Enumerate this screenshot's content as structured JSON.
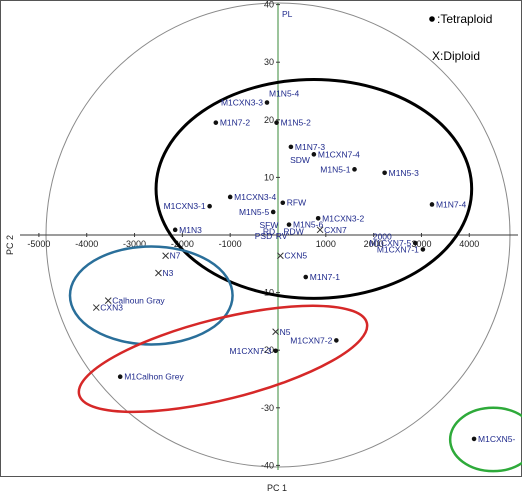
{
  "chart_data": {
    "type": "scatter",
    "xlabel": "PC 1",
    "ylabel": "PC 2",
    "xlim": [
      -5000,
      5000
    ],
    "ylim": [
      -40,
      40
    ],
    "x_ticks": [
      -5000,
      -4000,
      -3000,
      -2000,
      -1000,
      0,
      1000,
      2000,
      3000,
      4000
    ],
    "y_ticks": [
      -40,
      -30,
      -20,
      -10,
      10,
      20,
      30,
      40
    ],
    "grid": false,
    "legend": {
      "position": "top-right",
      "entries": [
        {
          "marker": "dot",
          "label": ":Tetraploid"
        },
        {
          "marker": "x",
          "label": "X:Diploid"
        }
      ]
    },
    "colors": {
      "labels": "#1f2a8c",
      "points": "#111111",
      "axes": "#3a3a3a",
      "circle": "#8a8a8a",
      "loading_axis": "#3a8a3a",
      "ellipse_black": "#000000",
      "ellipse_blue": "#2a6f9a",
      "ellipse_red": "#d62828",
      "ellipse_green": "#2eaa3a"
    },
    "loading_axis_label": "PL",
    "points": [
      {
        "label": "M1CXN3-3",
        "x": -230,
        "y": 23,
        "marker": "dot",
        "label_side": "left"
      },
      {
        "label": "M1N5-4",
        "x": -230,
        "y": 23,
        "marker": "none",
        "label_side": "above"
      },
      {
        "label": "M1N7-2",
        "x": -1300,
        "y": 19.5,
        "marker": "dot",
        "label_side": "right"
      },
      {
        "label": "M1N5-2",
        "x": -30,
        "y": 19.5,
        "marker": "dot",
        "label_side": "right"
      },
      {
        "label": "M1N7-3",
        "x": 270,
        "y": 15.3,
        "marker": "dot",
        "label_side": "right"
      },
      {
        "label": "M1CXN7-4",
        "x": 750,
        "y": 14,
        "marker": "dot",
        "label_side": "right"
      },
      {
        "label": "SDW",
        "x": 170,
        "y": 13,
        "marker": "none",
        "label_side": "right"
      },
      {
        "label": "M1N5-1",
        "x": 1600,
        "y": 11.4,
        "marker": "dot",
        "label_side": "left"
      },
      {
        "label": "M1N5-3",
        "x": 2230,
        "y": 10.8,
        "marker": "dot",
        "label_side": "right"
      },
      {
        "label": "M1CXN3-4",
        "x": -1000,
        "y": 6.6,
        "marker": "dot",
        "label_side": "right"
      },
      {
        "label": "M1CXN3-1",
        "x": -1430,
        "y": 5,
        "marker": "dot",
        "label_side": "left"
      },
      {
        "label": "RFW",
        "x": 100,
        "y": 5.6,
        "marker": "dot",
        "label_side": "right"
      },
      {
        "label": "M1N7-4",
        "x": 3220,
        "y": 5.3,
        "marker": "dot",
        "label_side": "right"
      },
      {
        "label": "M1N5-5",
        "x": -100,
        "y": 4,
        "marker": "dot",
        "label_side": "left"
      },
      {
        "label": "M1CXN3-2",
        "x": 840,
        "y": 2.9,
        "marker": "dot",
        "label_side": "right"
      },
      {
        "label": "SFW",
        "x": -470,
        "y": 1.7,
        "marker": "none",
        "label_side": "right"
      },
      {
        "label": "M1N5-6",
        "x": 230,
        "y": 1.8,
        "marker": "dot",
        "label_side": "right"
      },
      {
        "label": "RD",
        "x": -400,
        "y": 0.6,
        "marker": "none",
        "label_side": "right"
      },
      {
        "label": "RDW",
        "x": 30,
        "y": 0.6,
        "marker": "none",
        "label_side": "right"
      },
      {
        "label": "PSD",
        "x": -570,
        "y": -0.2,
        "marker": "none",
        "label_side": "right"
      },
      {
        "label": "RV",
        "x": -130,
        "y": -0.2,
        "marker": "none",
        "label_side": "right"
      },
      {
        "label": "M1N3",
        "x": -2150,
        "y": 0.9,
        "marker": "dot",
        "label_side": "right"
      },
      {
        "label": "CXN7",
        "x": 880,
        "y": 0.9,
        "marker": "x",
        "label_side": "right"
      },
      {
        "label": "2000",
        "x": 1900,
        "y": -0.3,
        "marker": "none",
        "label_side": "right"
      },
      {
        "label": "M1CXN7-5",
        "x": 2870,
        "y": -1.4,
        "marker": "dot",
        "label_side": "left"
      },
      {
        "label": "M1CXN7-1",
        "x": 3030,
        "y": -2.5,
        "marker": "dot",
        "label_side": "left"
      },
      {
        "label": "CXN5",
        "x": 50,
        "y": -3.6,
        "marker": "x",
        "label_side": "right"
      },
      {
        "label": "M1N7-1",
        "x": 580,
        "y": -7.3,
        "marker": "dot",
        "label_side": "right"
      },
      {
        "label": "N7",
        "x": -2350,
        "y": -3.6,
        "marker": "x",
        "label_side": "right"
      },
      {
        "label": "N3",
        "x": -2500,
        "y": -6.6,
        "marker": "x",
        "label_side": "right"
      },
      {
        "label": "Calhoun Gray",
        "x": -3550,
        "y": -11.4,
        "marker": "x",
        "label_side": "right"
      },
      {
        "label": "CXN3",
        "x": -3800,
        "y": -12.6,
        "marker": "x",
        "label_side": "right"
      },
      {
        "label": "N5",
        "x": -50,
        "y": -16.8,
        "marker": "x",
        "label_side": "right"
      },
      {
        "label": "M1CXN7-2",
        "x": 1220,
        "y": -18.3,
        "marker": "dot",
        "label_side": "left"
      },
      {
        "label": "M1CXN7-3",
        "x": -50,
        "y": -20.1,
        "marker": "dot",
        "label_side": "left"
      },
      {
        "label": "M1Calhon Grey",
        "x": -3300,
        "y": -24.6,
        "marker": "dot",
        "label_side": "right"
      },
      {
        "label": "M1CXN5-",
        "x": 4100,
        "y": -35.4,
        "marker": "dot",
        "label_side": "right"
      }
    ],
    "ellipses": [
      {
        "name": "tetraploid-cluster",
        "cx": 750,
        "cy": 8,
        "rx": 3300,
        "ry": 19,
        "color": "ellipse_black",
        "width": 3
      },
      {
        "name": "diploid-cluster",
        "cx": -2650,
        "cy": -10.5,
        "rx": 1700,
        "ry": 8.5,
        "color": "ellipse_blue",
        "width": 2.5
      },
      {
        "name": "m1-calhoun-cluster",
        "cx": -1150,
        "cy": -21.5,
        "rx": 3100,
        "ry": 7,
        "rotation": -14,
        "color": "ellipse_red",
        "width": 2.5
      },
      {
        "name": "m1cxn5-cluster",
        "cx": 4500,
        "cy": -35.5,
        "rx": 900,
        "ry": 5.5,
        "color": "ellipse_green",
        "width": 2.5
      }
    ]
  }
}
